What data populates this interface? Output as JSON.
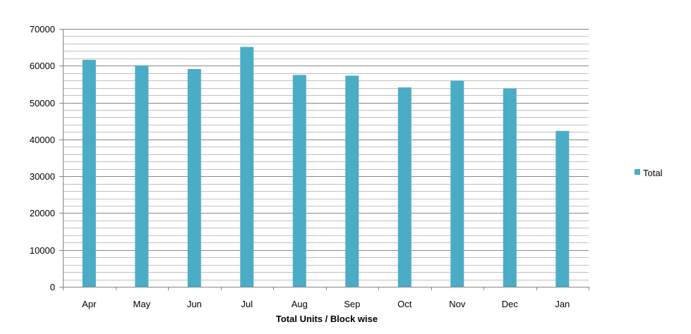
{
  "chart_data": {
    "type": "bar",
    "title": "",
    "xlabel": "Total Units / Block wise",
    "ylabel": "",
    "categories": [
      "Apr",
      "May",
      "Jun",
      "Jul",
      "Aug",
      "Sep",
      "Oct",
      "Nov",
      "Dec",
      "Jan"
    ],
    "series": [
      {
        "name": "Total",
        "values": [
          61600,
          60100,
          59100,
          65100,
          57500,
          57300,
          54100,
          55900,
          53800,
          42300
        ]
      }
    ],
    "ylim": [
      0,
      70000
    ],
    "yticks": [
      "0",
      "10000",
      "20000",
      "30000",
      "40000",
      "50000",
      "60000",
      "70000"
    ],
    "minor_gridline_step": 2000,
    "grid": true,
    "legend": "right",
    "colors": {
      "bar": "#4BACC6",
      "major_grid": "#868686",
      "minor_grid": "#C0C0C0",
      "axis": "#868686"
    }
  }
}
